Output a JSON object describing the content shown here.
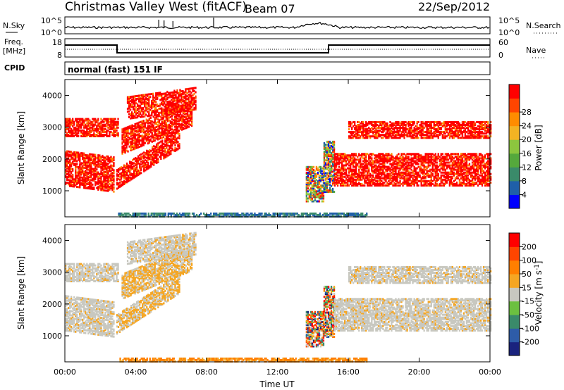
{
  "header": {
    "station": "Christmas Valley West (fitACF)",
    "beam": "Beam 07",
    "date": "22/Sep/2012"
  },
  "nsky_panel": {
    "label": "N.Sky",
    "ylabel_top": "10^5",
    "ylabel_bottom": "10^0",
    "right_label": "N.Search",
    "right_top": "10^5",
    "right_bottom": "10^0"
  },
  "freq_panel": {
    "label_line1": "Freq.",
    "label_line2": "[MHz]",
    "left_top": "18",
    "left_bottom": "8",
    "right_top": "60",
    "right_bottom": "0",
    "right_label": "Nave"
  },
  "cpid": {
    "label": "CPID",
    "value": "normal (fast) 151 IF"
  },
  "colors": {
    "scatter_red": "#ff0000",
    "ground_gray": "#c8c8c0",
    "scatter_orange": "#ff8c00"
  },
  "chart_data": [
    {
      "type": "heatmap",
      "name": "power",
      "ylabel": "Slant Range [km]",
      "xlabel": "Time UT",
      "x_ticks": [
        "00:00",
        "04:00",
        "08:00",
        "12:00",
        "16:00",
        "20:00",
        "00:00"
      ],
      "xlim_hours": [
        0,
        24
      ],
      "y_ticks": [
        "1000",
        "2000",
        "3000",
        "4000"
      ],
      "ylim_km": [
        180,
        4500
      ],
      "colorbar": {
        "label": "Power [dB]",
        "ticks": [
          "4",
          "8",
          "12",
          "16",
          "20",
          "24",
          "28"
        ],
        "range": [
          0,
          30
        ],
        "colors": [
          "#0000ff",
          "#1f5fa8",
          "#3a8a6a",
          "#55a83c",
          "#8cc63e",
          "#f3b323",
          "#ff8c00",
          "#ff4500",
          "#ff0000"
        ]
      }
    },
    {
      "type": "heatmap",
      "name": "velocity",
      "ylabel": "Slant Range [km]",
      "xlabel": "Time UT",
      "x_ticks": [
        "00:00",
        "04:00",
        "08:00",
        "12:00",
        "16:00",
        "20:00",
        "00:00"
      ],
      "xlim_hours": [
        0,
        24
      ],
      "y_ticks": [
        "1000",
        "2000",
        "3000",
        "4000"
      ],
      "ylim_km": [
        180,
        4500
      ],
      "colorbar": {
        "label": "Velocity [m s-1]",
        "ticks": [
          "200",
          "100",
          "50",
          "15",
          "-15",
          "-50",
          "-100",
          "-200"
        ],
        "colors": [
          "#1a237e",
          "#2e5ca8",
          "#3a8a6a",
          "#6cc040",
          "#c8c8c0",
          "#f5a623",
          "#ff7f00",
          "#ff4500",
          "#ff0000"
        ]
      }
    }
  ],
  "xaxis": {
    "label": "Time UT",
    "ticks": [
      "00:00",
      "04:00",
      "08:00",
      "12:00",
      "16:00",
      "20:00",
      "00:00"
    ]
  }
}
